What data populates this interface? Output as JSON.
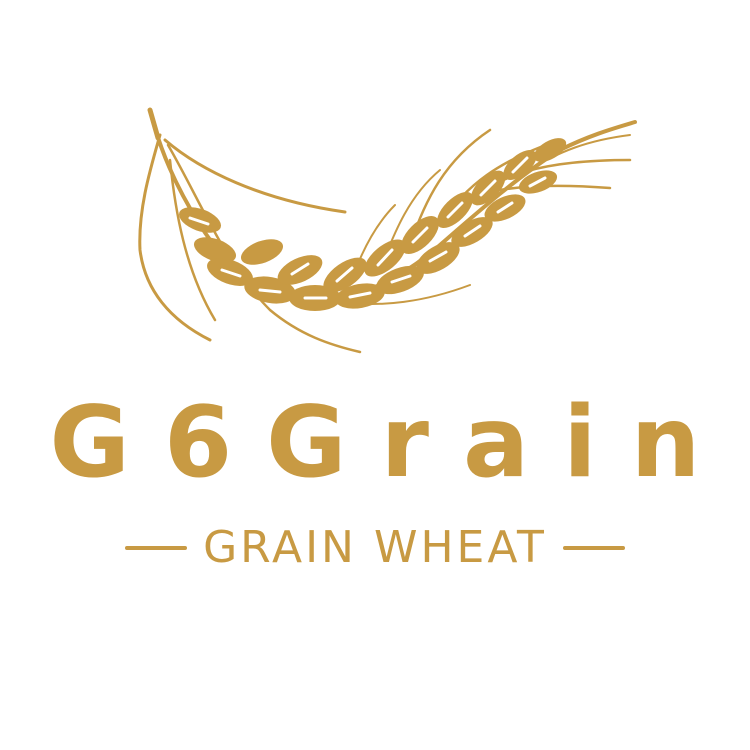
{
  "logo": {
    "brand_name": "G6Grain",
    "tagline": "GRAIN WHEAT",
    "emblem_icon": "wheat-ear-icon",
    "colors": {
      "gold": "#c89a43",
      "background": "#ffffff"
    }
  }
}
